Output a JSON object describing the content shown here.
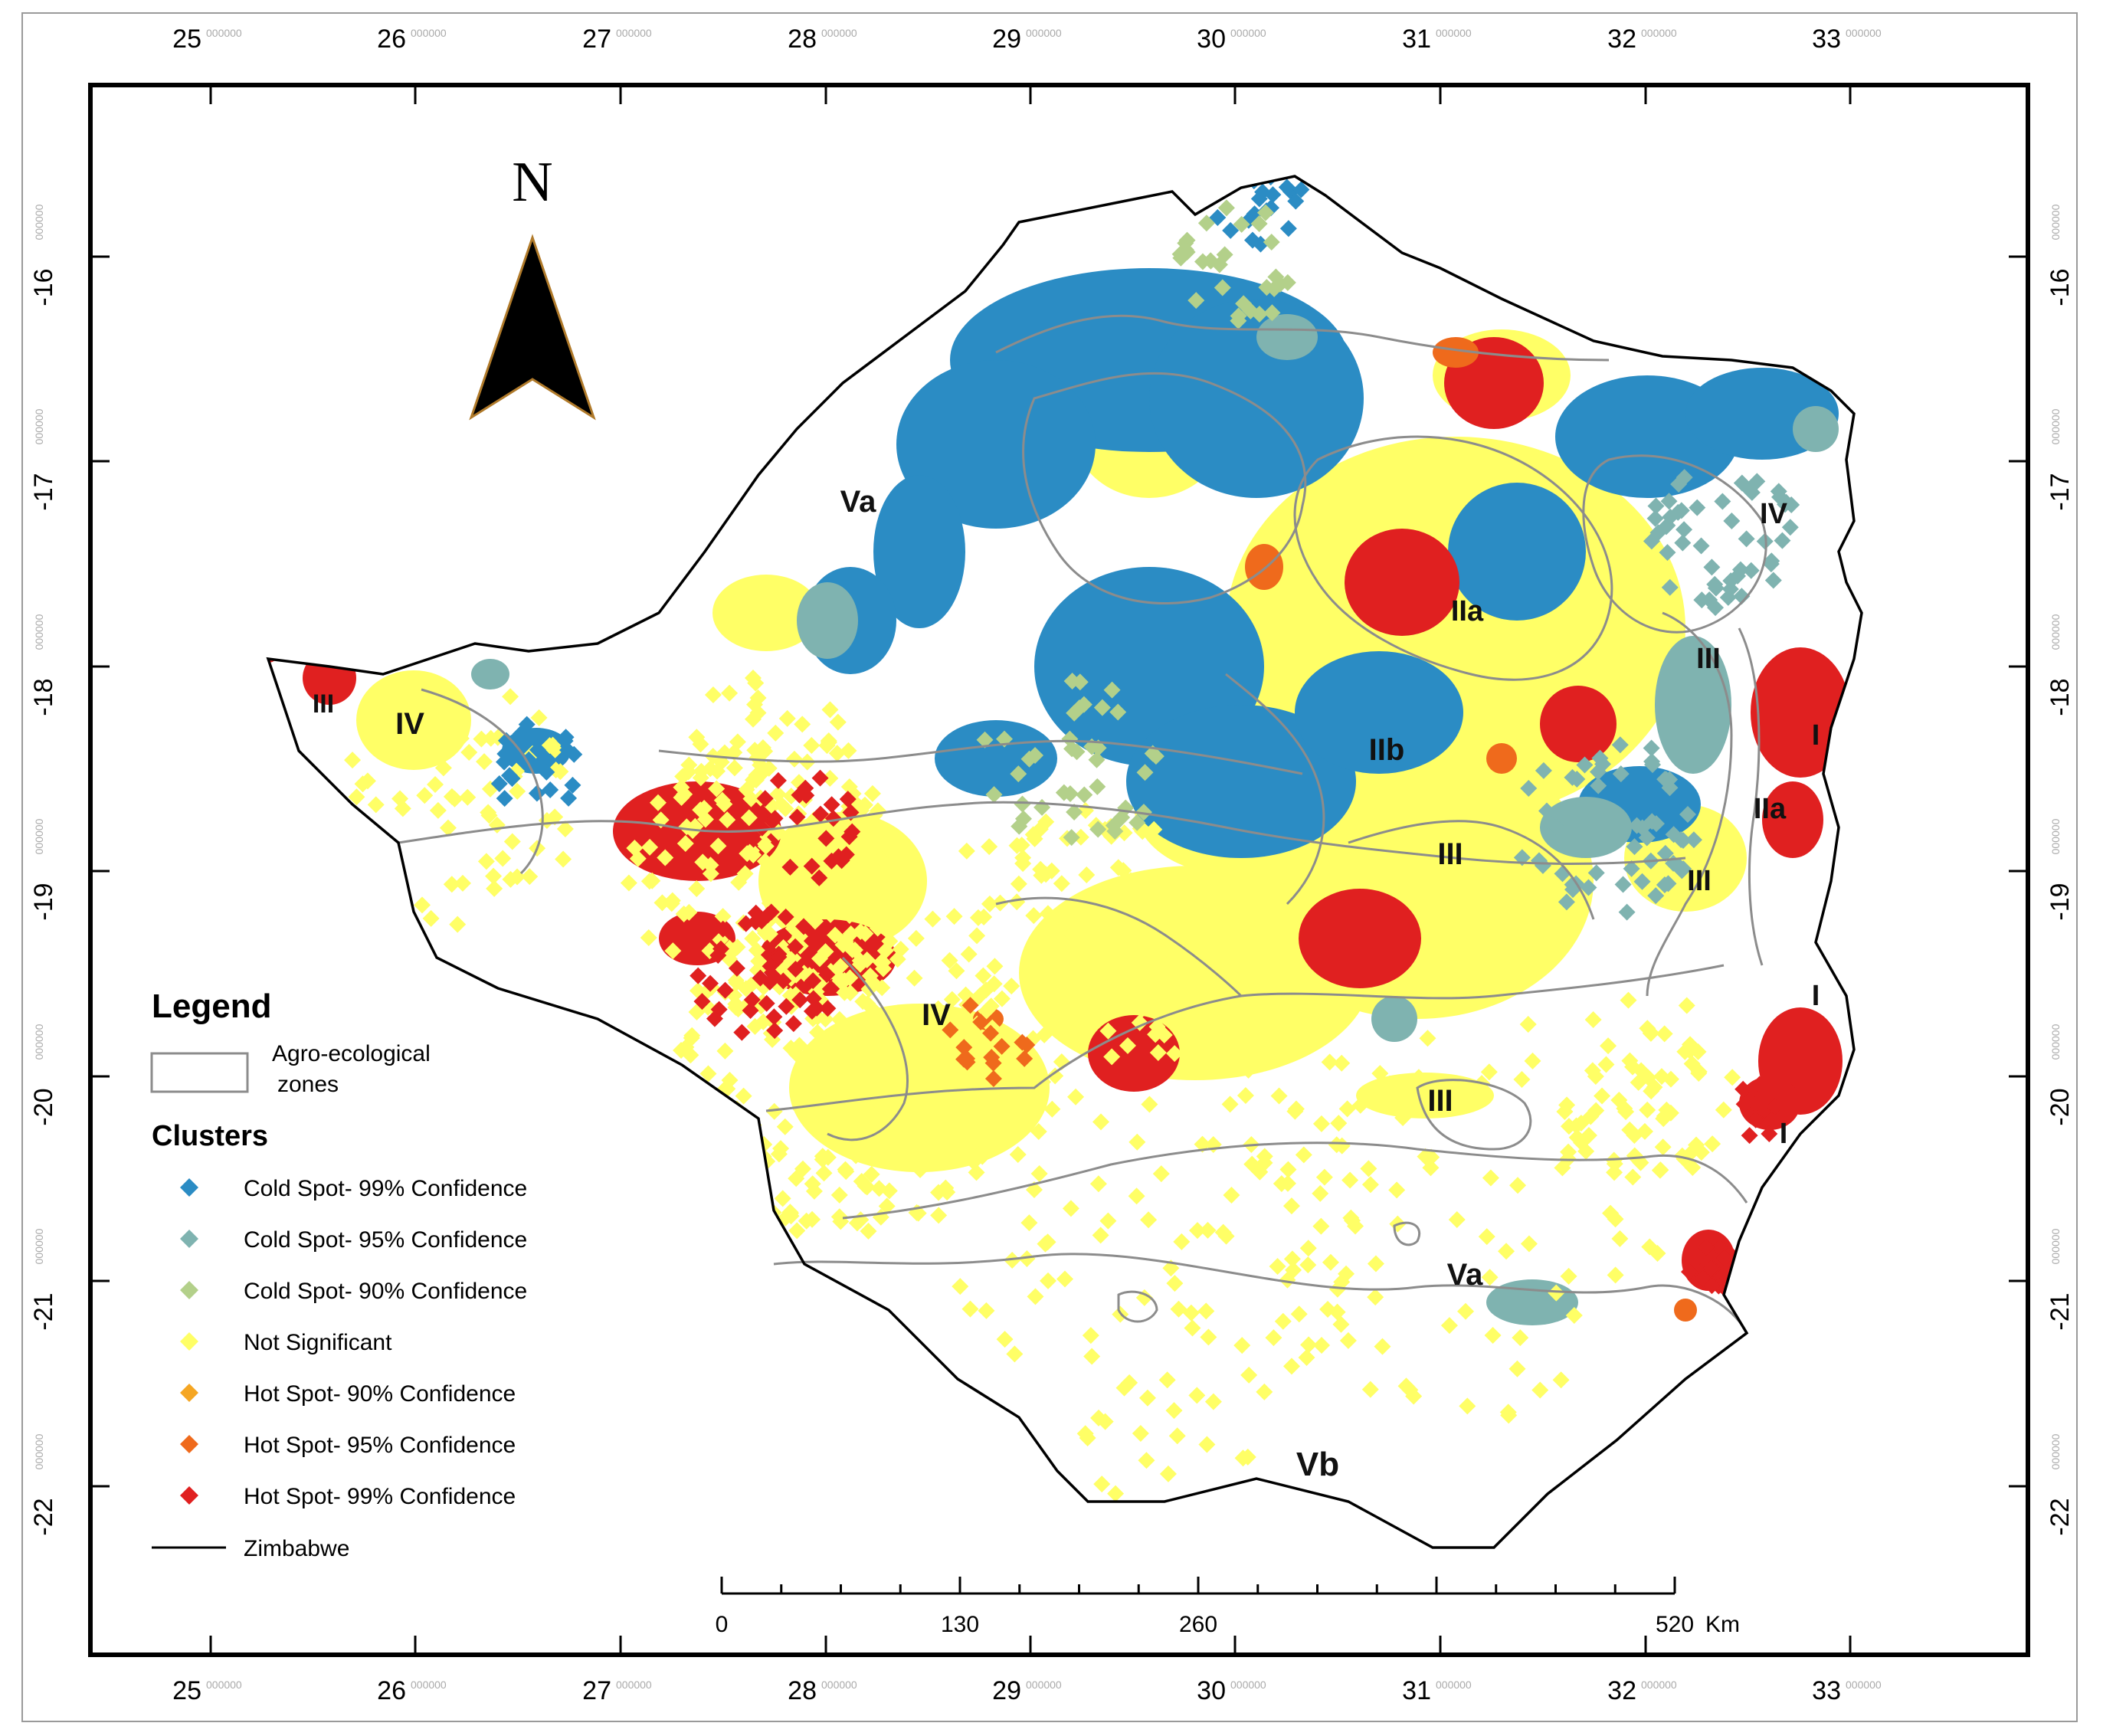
{
  "map": {
    "north_label": "N",
    "longitude_labels": [
      "25",
      "26",
      "27",
      "28",
      "29",
      "30",
      "31",
      "32",
      "33"
    ],
    "latitude_labels": [
      "-16",
      "-17",
      "-18",
      "-19",
      "-20",
      "-21",
      "-22"
    ],
    "coord_suffix": "000000",
    "zone_labels": [
      {
        "text": "Va"
      },
      {
        "text": "IV"
      },
      {
        "text": "IIa"
      },
      {
        "text": "III"
      },
      {
        "text": "III"
      },
      {
        "text": "IV"
      },
      {
        "text": "IIb"
      },
      {
        "text": "I"
      },
      {
        "text": "IIa"
      },
      {
        "text": "III"
      },
      {
        "text": "III"
      },
      {
        "text": "I"
      },
      {
        "text": "IV"
      },
      {
        "text": "III"
      },
      {
        "text": "I"
      },
      {
        "text": "Va"
      },
      {
        "text": "Vb"
      }
    ]
  },
  "legend": {
    "title": "Legend",
    "zones_label_line1": "Agro-ecological",
    "zones_label_line2": "zones",
    "clusters_title": "Clusters",
    "items": [
      {
        "label": "Cold Spot- 99% Confidence",
        "color": "#2b8cc4"
      },
      {
        "label": "Cold Spot- 95% Confidence",
        "color": "#7fb3b0"
      },
      {
        "label": "Cold Spot- 90% Confidence",
        "color": "#b3d08a"
      },
      {
        "label": "Not Significant",
        "color": "#ffff66"
      },
      {
        "label": "Hot Spot- 90% Confidence",
        "color": "#f5a623"
      },
      {
        "label": "Hot Spot- 95% Confidence",
        "color": "#ef6a1c"
      },
      {
        "label": "Hot Spot- 99% Confidence",
        "color": "#e02020"
      }
    ],
    "boundary_label": "Zimbabwe"
  },
  "scale_bar": {
    "labels": [
      "0",
      "130",
      "260",
      "520"
    ],
    "unit": "Km"
  }
}
